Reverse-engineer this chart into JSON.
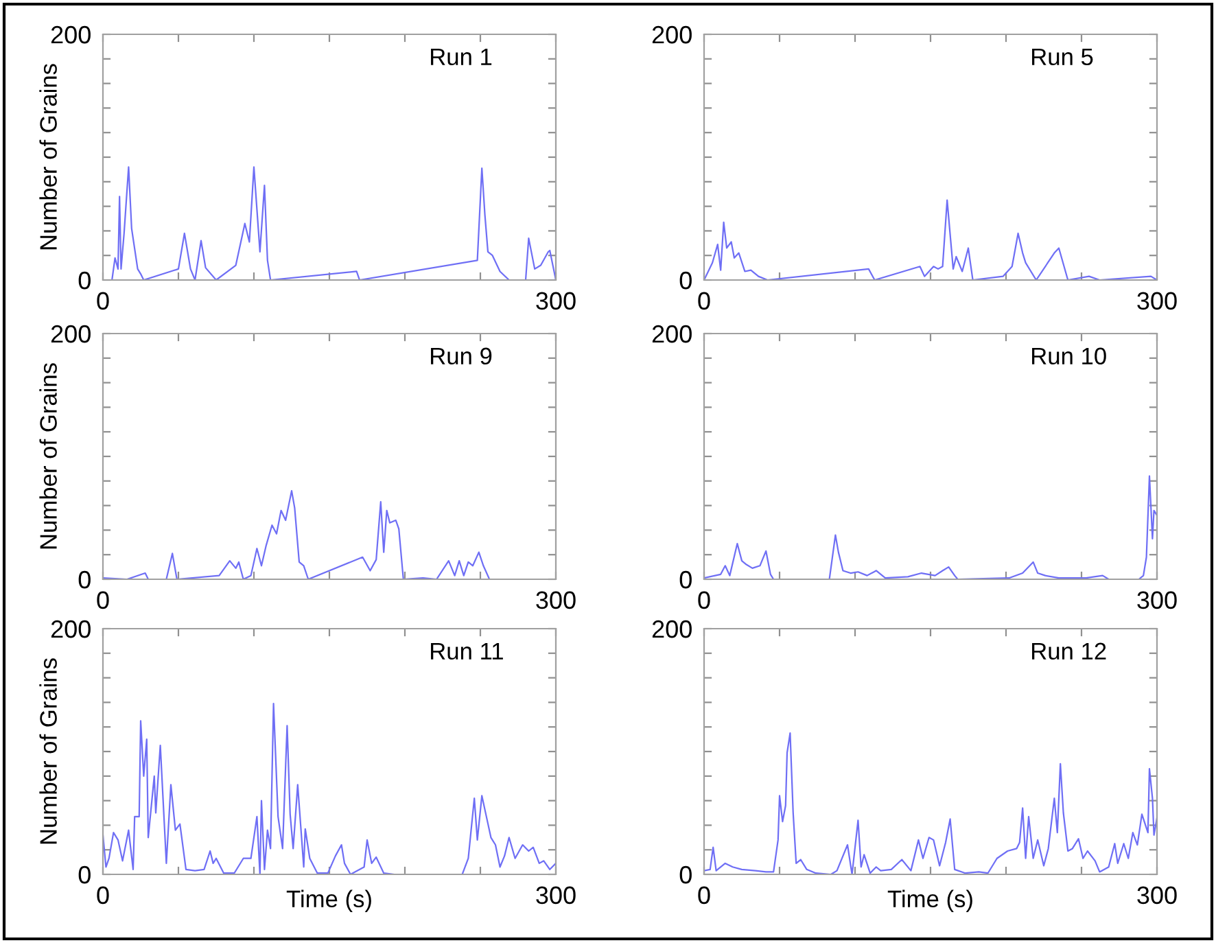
{
  "chart_data": [
    {
      "type": "line",
      "title": "Run 1",
      "ylabel": "Number of Grains",
      "color": "#6f6ff5",
      "xlim": [
        0,
        300
      ],
      "ylim": [
        0,
        200
      ],
      "xticks": [
        0,
        {
          "value": 50,
          "label": null
        },
        {
          "value": 100,
          "label": null
        },
        {
          "value": 150,
          "label": null
        },
        {
          "value": 200,
          "label": null
        },
        {
          "value": 250,
          "label": null
        },
        300
      ],
      "yticks": [
        0,
        {
          "value": 20,
          "label": null
        },
        {
          "value": 40,
          "label": null
        },
        {
          "value": 60,
          "label": null
        },
        {
          "value": 80,
          "label": null
        },
        {
          "value": 100,
          "label": null
        },
        {
          "value": 120,
          "label": null
        },
        {
          "value": 140,
          "label": null
        },
        {
          "value": 160,
          "label": null
        },
        {
          "value": 180,
          "label": null
        },
        200
      ],
      "x": [
        6,
        8,
        10,
        11,
        12,
        14,
        17,
        19,
        23,
        25,
        27,
        50,
        54,
        58,
        61,
        65,
        68,
        75,
        88,
        94,
        97,
        100,
        104,
        107,
        109,
        111,
        168,
        170,
        248,
        251,
        253,
        255,
        258,
        263,
        269,
        280,
        282,
        286,
        290,
        295,
        296,
        300
      ],
      "values": [
        0,
        18,
        9,
        68,
        9,
        38,
        92,
        42,
        9,
        5,
        0,
        9,
        38,
        9,
        0,
        32,
        10,
        0,
        12,
        46,
        31,
        92,
        23,
        77,
        16,
        0,
        7,
        0,
        16,
        91,
        53,
        23,
        20,
        7,
        0,
        0,
        34,
        9,
        12,
        23,
        24,
        0
      ]
    },
    {
      "type": "line",
      "title": "Run 5",
      "color": "#6f6ff5",
      "xlim": [
        0,
        300
      ],
      "ylim": [
        0,
        200
      ],
      "xticks": [
        0,
        {
          "value": 50,
          "label": null
        },
        {
          "value": 100,
          "label": null
        },
        {
          "value": 150,
          "label": null
        },
        {
          "value": 200,
          "label": null
        },
        {
          "value": 250,
          "label": null
        },
        300
      ],
      "yticks": [
        0,
        {
          "value": 20,
          "label": null
        },
        {
          "value": 40,
          "label": null
        },
        {
          "value": 60,
          "label": null
        },
        {
          "value": 80,
          "label": null
        },
        {
          "value": 100,
          "label": null
        },
        {
          "value": 120,
          "label": null
        },
        {
          "value": 140,
          "label": null
        },
        {
          "value": 160,
          "label": null
        },
        {
          "value": 180,
          "label": null
        },
        200
      ],
      "x": [
        0,
        5.5,
        9,
        11,
        13,
        15,
        18,
        20,
        23,
        27,
        31,
        36,
        42,
        109,
        113,
        143,
        146,
        152,
        155,
        158,
        161,
        165,
        167,
        171,
        175,
        178,
        198,
        204,
        208,
        211,
        213,
        220,
        232,
        235,
        241,
        255,
        262,
        296,
        300
      ],
      "values": [
        0,
        14,
        29,
        8,
        47,
        26,
        31,
        18,
        22,
        7,
        8,
        3,
        0,
        9,
        0,
        11,
        3,
        11,
        9,
        11,
        65,
        9,
        19,
        7,
        26,
        0,
        3,
        11,
        38,
        22,
        14,
        0,
        22,
        26,
        0,
        3,
        0,
        3,
        0
      ]
    },
    {
      "type": "line",
      "title": "Run 9",
      "ylabel": "Number of Grains",
      "color": "#6f6ff5",
      "xlim": [
        0,
        300
      ],
      "ylim": [
        0,
        200
      ],
      "xticks": [
        0,
        {
          "value": 50,
          "label": null
        },
        {
          "value": 100,
          "label": null
        },
        {
          "value": 150,
          "label": null
        },
        {
          "value": 200,
          "label": null
        },
        {
          "value": 250,
          "label": null
        },
        300
      ],
      "yticks": [
        0,
        {
          "value": 20,
          "label": null
        },
        {
          "value": 40,
          "label": null
        },
        {
          "value": 60,
          "label": null
        },
        {
          "value": 80,
          "label": null
        },
        {
          "value": 100,
          "label": null
        },
        {
          "value": 120,
          "label": null
        },
        {
          "value": 140,
          "label": null
        },
        {
          "value": 160,
          "label": null
        },
        {
          "value": 180,
          "label": null
        },
        200
      ],
      "x": [
        0,
        16,
        28,
        30,
        42,
        46,
        49,
        77,
        84,
        88,
        90,
        93,
        98,
        102,
        105,
        108,
        112,
        115,
        118,
        121,
        125,
        127,
        130,
        133,
        136,
        172,
        177,
        181,
        184,
        186,
        188,
        190,
        194,
        196,
        199,
        212,
        221,
        229,
        233,
        236,
        239,
        242,
        245,
        249,
        252,
        256
      ],
      "values": [
        1,
        0,
        5,
        0,
        0,
        21,
        0,
        3,
        15,
        9,
        14,
        0,
        3,
        25,
        11,
        27,
        44,
        37,
        56,
        48,
        72,
        58,
        14,
        11,
        0,
        18,
        7,
        16,
        63,
        22,
        56,
        46,
        48,
        41,
        0,
        1,
        0,
        15,
        3,
        15,
        3,
        14,
        11,
        22,
        11,
        0
      ]
    },
    {
      "type": "line",
      "title": "Run 10",
      "color": "#6f6ff5",
      "xlim": [
        0,
        300
      ],
      "ylim": [
        0,
        200
      ],
      "xticks": [
        0,
        {
          "value": 50,
          "label": null
        },
        {
          "value": 100,
          "label": null
        },
        {
          "value": 150,
          "label": null
        },
        {
          "value": 200,
          "label": null
        },
        {
          "value": 250,
          "label": null
        },
        300
      ],
      "yticks": [
        0,
        {
          "value": 20,
          "label": null
        },
        {
          "value": 40,
          "label": null
        },
        {
          "value": 60,
          "label": null
        },
        {
          "value": 80,
          "label": null
        },
        {
          "value": 100,
          "label": null
        },
        {
          "value": 120,
          "label": null
        },
        {
          "value": 140,
          "label": null
        },
        {
          "value": 160,
          "label": null
        },
        {
          "value": 180,
          "label": null
        },
        200
      ],
      "x": [
        0,
        11,
        14,
        17,
        22,
        25,
        28,
        32,
        37,
        41,
        44,
        46,
        83,
        87,
        89,
        92,
        97,
        102,
        108,
        114,
        120,
        135,
        144,
        153,
        158,
        162,
        166,
        168,
        202,
        211,
        218,
        221,
        226,
        235,
        253,
        264,
        268,
        288,
        291,
        293,
        295,
        297,
        298,
        300
      ],
      "values": [
        1,
        4,
        11,
        3,
        29,
        15,
        12,
        9,
        11,
        23,
        4,
        0,
        0,
        36,
        22,
        7,
        5,
        6,
        3,
        7,
        1,
        2,
        5,
        3,
        7,
        10,
        3,
        0,
        1,
        5,
        14,
        5,
        3,
        1,
        1,
        3,
        0,
        0,
        3,
        18,
        84,
        33,
        56,
        52
      ]
    },
    {
      "type": "line",
      "title": "Run 11",
      "ylabel": "Number of Grains",
      "xlabel": "Time (s)",
      "color": "#6f6ff5",
      "xlim": [
        0,
        300
      ],
      "ylim": [
        0,
        200
      ],
      "xticks": [
        0,
        {
          "value": 50,
          "label": null
        },
        {
          "value": 100,
          "label": null
        },
        {
          "value": 150,
          "label": null
        },
        {
          "value": 200,
          "label": null
        },
        {
          "value": 250,
          "label": null
        },
        300
      ],
      "yticks": [
        0,
        {
          "value": 20,
          "label": null
        },
        {
          "value": 40,
          "label": null
        },
        {
          "value": 60,
          "label": null
        },
        {
          "value": 80,
          "label": null
        },
        {
          "value": 100,
          "label": null
        },
        {
          "value": 120,
          "label": null
        },
        {
          "value": 140,
          "label": null
        },
        {
          "value": 160,
          "label": null
        },
        {
          "value": 180,
          "label": null
        },
        200
      ],
      "x": [
        0,
        2,
        4,
        7,
        10,
        13,
        17,
        20,
        21,
        24,
        25,
        27,
        29,
        30,
        34,
        35,
        38,
        42,
        45,
        48,
        51,
        55,
        61,
        67,
        71,
        73,
        75,
        80,
        87,
        93,
        98,
        102,
        104,
        105,
        107,
        109,
        111,
        113,
        116,
        119,
        122,
        124,
        126,
        129,
        133,
        134,
        137,
        142,
        149,
        154,
        158,
        160,
        164,
        173,
        175,
        178,
        181,
        186,
        193,
        238,
        242,
        246,
        248,
        251,
        254,
        257,
        260,
        263,
        266,
        269,
        273,
        278,
        282,
        285,
        289,
        292,
        296,
        300
      ],
      "values": [
        32,
        6,
        13,
        34,
        28,
        11,
        36,
        4,
        47,
        47,
        125,
        80,
        110,
        30,
        80,
        50,
        105,
        9,
        73,
        36,
        41,
        4,
        3,
        4,
        19,
        9,
        13,
        1,
        1,
        13,
        13,
        47,
        0,
        60,
        4,
        36,
        21,
        139,
        47,
        21,
        121,
        49,
        21,
        73,
        6,
        37,
        13,
        1,
        1,
        15,
        24,
        9,
        0,
        6,
        28,
        9,
        14,
        1,
        0,
        0,
        13,
        62,
        28,
        64,
        47,
        30,
        24,
        6,
        15,
        30,
        13,
        24,
        19,
        22,
        9,
        11,
        4,
        9
      ]
    },
    {
      "type": "line",
      "title": "Run 12",
      "xlabel": "Time (s)",
      "color": "#6f6ff5",
      "xlim": [
        0,
        300
      ],
      "ylim": [
        0,
        200
      ],
      "xticks": [
        0,
        {
          "value": 50,
          "label": null
        },
        {
          "value": 100,
          "label": null
        },
        {
          "value": 150,
          "label": null
        },
        {
          "value": 200,
          "label": null
        },
        {
          "value": 250,
          "label": null
        },
        300
      ],
      "yticks": [
        0,
        {
          "value": 20,
          "label": null
        },
        {
          "value": 40,
          "label": null
        },
        {
          "value": 60,
          "label": null
        },
        {
          "value": 80,
          "label": null
        },
        {
          "value": 100,
          "label": null
        },
        {
          "value": 120,
          "label": null
        },
        {
          "value": 140,
          "label": null
        },
        {
          "value": 160,
          "label": null
        },
        {
          "value": 180,
          "label": null
        },
        200
      ],
      "x": [
        0,
        4,
        6,
        8,
        14,
        19,
        25,
        34,
        41,
        46,
        49,
        50,
        52,
        54,
        55,
        57,
        59,
        61,
        64,
        68,
        74,
        84,
        88,
        95,
        98,
        102,
        104,
        106,
        110,
        114,
        117,
        124,
        131,
        137,
        142,
        145,
        149,
        152,
        156,
        160,
        163,
        166,
        173,
        182,
        188,
        194,
        201,
        207,
        209,
        211,
        213,
        215,
        218,
        221,
        225,
        228,
        232,
        234,
        236,
        238,
        241,
        244,
        248,
        251,
        254,
        259,
        262,
        268,
        272,
        274,
        278,
        281,
        284,
        287,
        290,
        294,
        295,
        297,
        298,
        300
      ],
      "values": [
        3,
        4,
        22,
        3,
        9,
        6,
        4,
        3,
        2,
        2,
        28,
        64,
        43,
        56,
        99,
        115,
        50,
        9,
        12,
        4,
        1,
        0,
        3,
        24,
        0,
        44,
        6,
        16,
        1,
        6,
        3,
        4,
        12,
        3,
        28,
        13,
        30,
        28,
        7,
        26,
        45,
        4,
        1,
        2,
        1,
        13,
        19,
        21,
        26,
        54,
        13,
        47,
        13,
        28,
        7,
        21,
        62,
        34,
        90,
        50,
        19,
        21,
        29,
        13,
        19,
        11,
        2,
        6,
        25,
        9,
        25,
        13,
        34,
        24,
        49,
        34,
        86,
        62,
        32,
        46
      ]
    }
  ]
}
